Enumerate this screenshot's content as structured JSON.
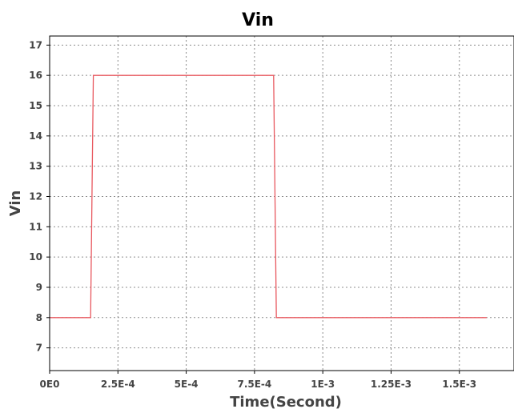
{
  "chart_data": {
    "type": "line",
    "title": "Vin",
    "xlabel": "Time(Second)",
    "ylabel": "Vin",
    "xlim": [
      0,
      0.0017
    ],
    "ylim": [
      6.25,
      17.3
    ],
    "x_ticks": [
      0,
      0.00025,
      0.0005,
      0.00075,
      0.001,
      0.00125,
      0.0015
    ],
    "x_tick_labels": [
      "0E0",
      "2.5E-4",
      "5E-4",
      "7.5E-4",
      "1E-3",
      "1.25E-3",
      "1.5E-3"
    ],
    "y_ticks": [
      7,
      8,
      9,
      10,
      11,
      12,
      13,
      14,
      15,
      16,
      17
    ],
    "y_tick_labels": [
      "7",
      "8",
      "9",
      "10",
      "11",
      "12",
      "13",
      "14",
      "15",
      "16",
      "17"
    ],
    "grid": true,
    "series": [
      {
        "color": "#e8585f",
        "x": [
          0,
          0.00015,
          0.00016,
          0.00082,
          0.00083,
          0.0016
        ],
        "y": [
          8,
          8,
          16,
          16,
          8,
          8
        ]
      }
    ]
  }
}
